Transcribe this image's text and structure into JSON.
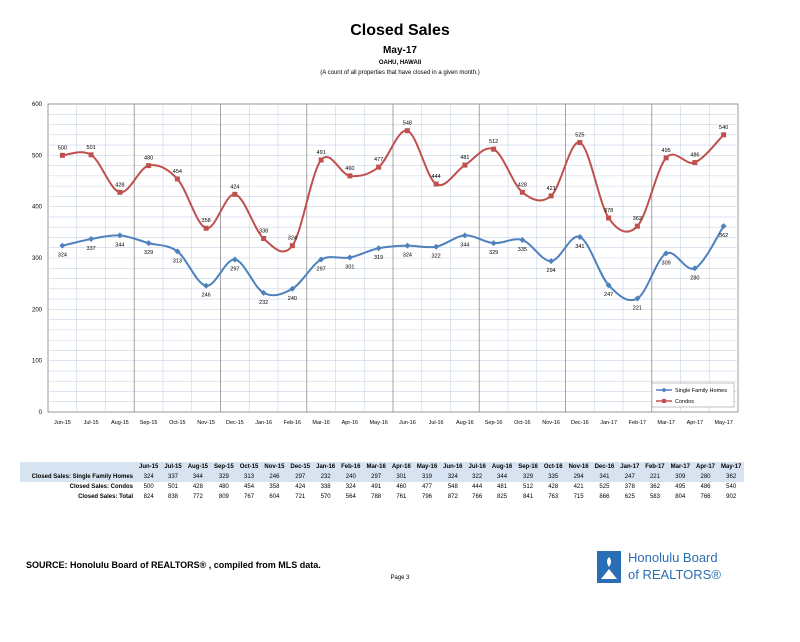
{
  "header": {
    "title": "Closed Sales",
    "subtitle": "May-17",
    "location": "OAHU, HAWAII",
    "note": "(A count of all properties that have closed in a given month.)"
  },
  "chart_data": {
    "type": "line",
    "categories": [
      "Jun-15",
      "Jul-15",
      "Aug-15",
      "Sep-15",
      "Oct-15",
      "Nov-15",
      "Dec-15",
      "Jan-16",
      "Feb-16",
      "Mar-16",
      "Apr-16",
      "May-16",
      "Jun-16",
      "Jul-16",
      "Aug-16",
      "Sep-16",
      "Oct-16",
      "Nov-16",
      "Dec-16",
      "Jan-17",
      "Feb-17",
      "Mar-17",
      "Apr-17",
      "May-17"
    ],
    "series": [
      {
        "name": "Single Family Homes",
        "color": "#4f81bd",
        "values": [
          324,
          337,
          344,
          329,
          313,
          246,
          297,
          232,
          240,
          297,
          301,
          319,
          324,
          322,
          344,
          329,
          335,
          294,
          341,
          247,
          221,
          309,
          280,
          362
        ]
      },
      {
        "name": "Condos",
        "color": "#c0504d",
        "values": [
          500,
          501,
          428,
          480,
          454,
          358,
          424,
          338,
          324,
          491,
          460,
          477,
          548,
          444,
          481,
          512,
          428,
          421,
          525,
          378,
          362,
          495,
          486,
          540
        ]
      }
    ],
    "ylim": [
      0,
      600
    ],
    "yticks": [
      0,
      100,
      200,
      300,
      400,
      500,
      600
    ],
    "grid": true,
    "legend_position": "bottom-right"
  },
  "table": {
    "columns": [
      "Jun-15",
      "Jul-15",
      "Aug-15",
      "Sep-15",
      "Oct-15",
      "Nov-15",
      "Dec-15",
      "Jan-16",
      "Feb-16",
      "Mar-16",
      "Apr-16",
      "May-16",
      "Jun-16",
      "Jul-16",
      "Aug-16",
      "Sep-16",
      "Oct-16",
      "Nov-16",
      "Dec-16",
      "Jan-17",
      "Feb-17",
      "Mar-17",
      "Apr-17",
      "May-17"
    ],
    "rows": [
      {
        "label": "Closed Sales: Single Family Homes",
        "values": [
          "324",
          "337",
          "344",
          "329",
          "313",
          "246",
          "297",
          "232",
          "240",
          "297",
          "301",
          "319",
          "324",
          "322",
          "344",
          "329",
          "335",
          "294",
          "341",
          "247",
          "221",
          "309",
          "280",
          "362"
        ]
      },
      {
        "label": "Closed Sales: Condos",
        "values": [
          "500",
          "501",
          "428",
          "480",
          "454",
          "358",
          "424",
          "338",
          "324",
          "491",
          "460",
          "477",
          "548",
          "444",
          "481",
          "512",
          "428",
          "421",
          "525",
          "378",
          "362",
          "495",
          "486",
          "540"
        ]
      },
      {
        "label": "Closed Sales: Total",
        "values": [
          "824",
          "838",
          "772",
          "809",
          "767",
          "604",
          "721",
          "570",
          "564",
          "788",
          "761",
          "796",
          "872",
          "766",
          "825",
          "841",
          "763",
          "715",
          "866",
          "625",
          "583",
          "804",
          "766",
          "902"
        ]
      }
    ]
  },
  "footer": {
    "source": "SOURCE:  Honolulu Board of REALTORS® , compiled from MLS data.",
    "page": "Page 3",
    "logo_line1": "Honolulu Board",
    "logo_line2": "of REALTORS®"
  }
}
